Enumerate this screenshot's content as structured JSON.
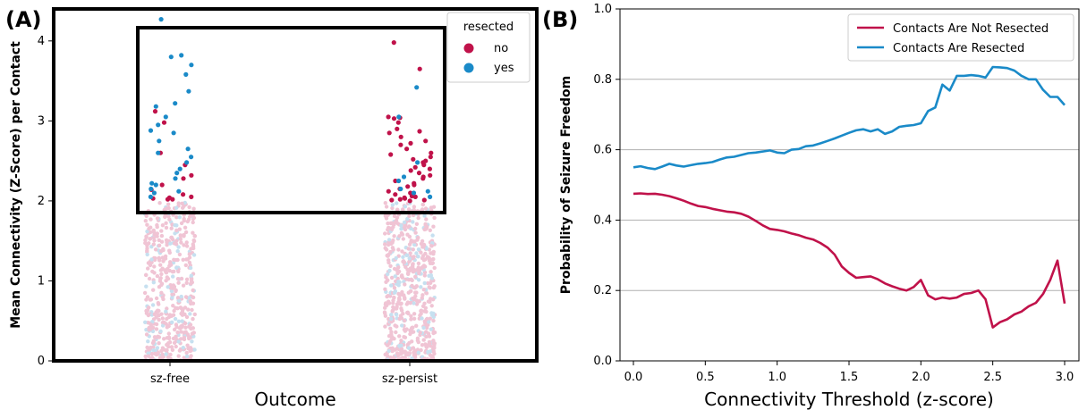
{
  "chart_data": [
    {
      "panel": "(A)",
      "type": "scatter",
      "subtype": "categorical-strip",
      "xlabel": "Outcome",
      "ylabel": "Mean Connectivity (Z-Score) per Contact",
      "categories": [
        "sz-free",
        "sz-persist"
      ],
      "yticks": [
        "0",
        "1",
        "2",
        "3",
        "4"
      ],
      "ylim": [
        0,
        4.4
      ],
      "highlight_box": {
        "y_from": 2.0,
        "y_to": 4.45
      },
      "legend": {
        "title": "resected",
        "placement": "top-right",
        "entries": [
          {
            "label": "no",
            "color": "#C0124A"
          },
          {
            "label": "yes",
            "color": "#1A8AC8"
          }
        ]
      },
      "faded_colors": {
        "no": "#F0C4D4",
        "yes": "#C6E0F0"
      },
      "background_points": {
        "sz-free": {
          "count": 520,
          "y_range": [
            0,
            1.98
          ],
          "fraction_yes": 0.2
        },
        "sz-persist": {
          "count": 620,
          "y_range": [
            0,
            1.98
          ],
          "fraction_yes": 0.2
        }
      },
      "series": [
        {
          "name": "no",
          "points": [
            {
              "x": "sz-free",
              "y": [
                3.12,
                2.98,
                2.32,
                2.28,
                2.2,
                2.14,
                2.08,
                2.05,
                2.04,
                2.02,
                2.6,
                2.45,
                2.02,
                2.03
              ]
            },
            {
              "x": "sz-persist",
              "y": [
                3.98,
                3.65,
                3.05,
                3.04,
                3.03,
                2.98,
                2.9,
                2.87,
                2.85,
                2.8,
                2.75,
                2.72,
                2.7,
                2.65,
                2.6,
                2.58,
                2.55,
                2.52,
                2.5,
                2.48,
                2.45,
                2.42,
                2.4,
                2.38,
                2.35,
                2.32,
                2.3,
                2.28,
                2.25,
                2.22,
                2.2,
                2.18,
                2.15,
                2.12,
                2.1,
                2.08,
                2.06,
                2.05,
                2.04,
                2.03,
                2.02,
                2.01,
                2.01,
                2.0
              ]
            }
          ]
        },
        {
          "name": "yes",
          "points": [
            {
              "x": "sz-free",
              "y": [
                4.27,
                3.82,
                3.8,
                3.7,
                3.58,
                3.37,
                3.22,
                3.18,
                3.05,
                2.95,
                2.88,
                2.85,
                2.75,
                2.65,
                2.6,
                2.55,
                2.48,
                2.4,
                2.35,
                2.28,
                2.22,
                2.2,
                2.15,
                2.12,
                2.1,
                2.05
              ]
            },
            {
              "x": "sz-persist",
              "y": [
                3.42,
                3.05,
                2.48,
                2.3,
                2.25,
                2.15,
                2.12,
                2.1,
                2.05
              ]
            }
          ]
        }
      ]
    },
    {
      "panel": "(B)",
      "type": "line",
      "xlabel": "Connectivity Threshold (z-score)",
      "ylabel": "Probability of Seizure Freedom",
      "xlim": [
        0,
        3
      ],
      "ylim": [
        0,
        1.0
      ],
      "xticks": [
        "0.0",
        "0.5",
        "1.0",
        "1.5",
        "2.0",
        "2.5",
        "3.0"
      ],
      "yticks": [
        "0.0",
        "0.2",
        "0.4",
        "0.6",
        "0.8",
        "1.0"
      ],
      "grid": "horizontal",
      "legend_placement": "top-right",
      "x": [
        0.0,
        0.05,
        0.1,
        0.15,
        0.2,
        0.25,
        0.3,
        0.35,
        0.4,
        0.45,
        0.5,
        0.55,
        0.6,
        0.65,
        0.7,
        0.75,
        0.8,
        0.85,
        0.9,
        0.95,
        1.0,
        1.05,
        1.1,
        1.15,
        1.2,
        1.25,
        1.3,
        1.35,
        1.4,
        1.45,
        1.5,
        1.55,
        1.6,
        1.65,
        1.7,
        1.75,
        1.8,
        1.85,
        1.9,
        1.95,
        2.0,
        2.05,
        2.1,
        2.15,
        2.2,
        2.25,
        2.3,
        2.35,
        2.4,
        2.45,
        2.5,
        2.55,
        2.6,
        2.65,
        2.7,
        2.75,
        2.8,
        2.85,
        2.9,
        2.95,
        3.0
      ],
      "series": [
        {
          "name": "Contacts Are Not Resected",
          "color": "#C0124A",
          "values": [
            0.475,
            0.476,
            0.474,
            0.475,
            0.472,
            0.468,
            0.462,
            0.455,
            0.447,
            0.44,
            0.437,
            0.432,
            0.428,
            0.424,
            0.422,
            0.418,
            0.41,
            0.398,
            0.385,
            0.375,
            0.372,
            0.368,
            0.362,
            0.357,
            0.35,
            0.345,
            0.335,
            0.322,
            0.302,
            0.268,
            0.25,
            0.236,
            0.238,
            0.24,
            0.232,
            0.22,
            0.212,
            0.205,
            0.2,
            0.21,
            0.23,
            0.186,
            0.175,
            0.18,
            0.177,
            0.18,
            0.19,
            0.193,
            0.2,
            0.175,
            0.095,
            0.11,
            0.118,
            0.132,
            0.14,
            0.155,
            0.165,
            0.19,
            0.23,
            0.285,
            0.163
          ]
        },
        {
          "name": "Contacts Are Resected",
          "color": "#1A8AC8",
          "values": [
            0.55,
            0.553,
            0.548,
            0.545,
            0.552,
            0.56,
            0.555,
            0.552,
            0.556,
            0.56,
            0.562,
            0.565,
            0.572,
            0.578,
            0.58,
            0.585,
            0.59,
            0.592,
            0.595,
            0.598,
            0.592,
            0.59,
            0.6,
            0.602,
            0.61,
            0.612,
            0.618,
            0.625,
            0.632,
            0.64,
            0.648,
            0.655,
            0.658,
            0.652,
            0.658,
            0.645,
            0.652,
            0.665,
            0.668,
            0.67,
            0.675,
            0.71,
            0.72,
            0.785,
            0.768,
            0.81,
            0.81,
            0.812,
            0.81,
            0.805,
            0.835,
            0.834,
            0.832,
            0.825,
            0.81,
            0.8,
            0.8,
            0.77,
            0.75,
            0.75,
            0.727
          ]
        }
      ]
    }
  ]
}
